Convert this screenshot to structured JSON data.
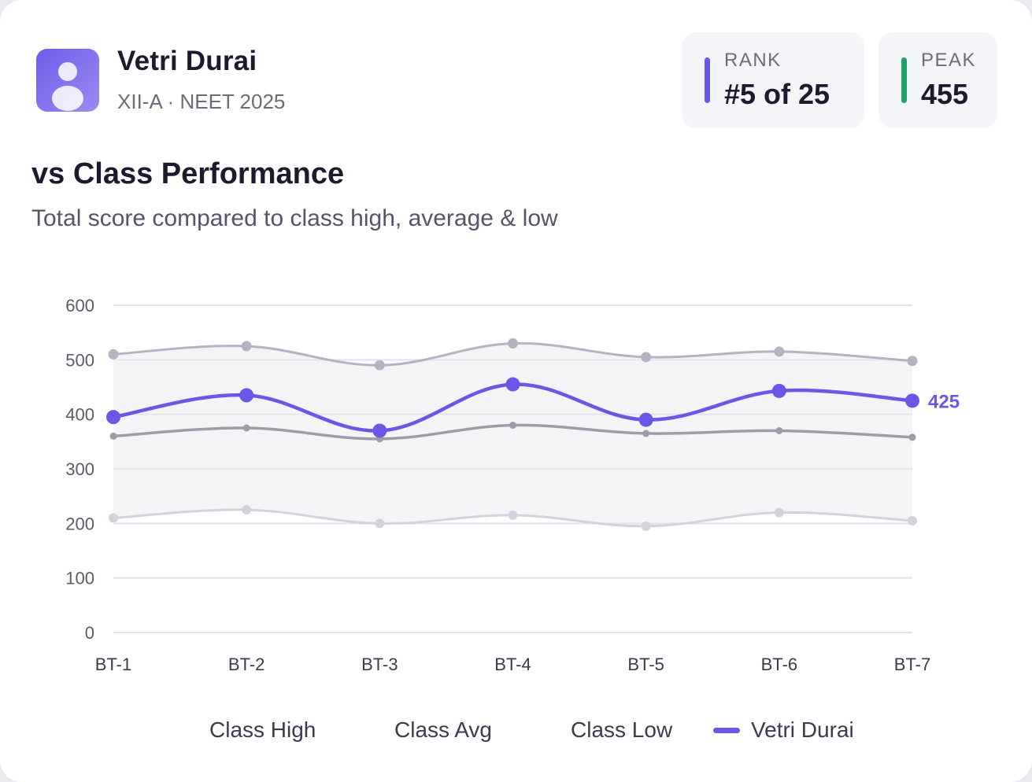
{
  "student": {
    "name": "Vetri Durai",
    "class_info": "XII-A · NEET 2025",
    "avatar_icon": "user-avatar-icon"
  },
  "stats": {
    "rank": {
      "label": "RANK",
      "value": "#5 of 25",
      "color": "#6b57e6"
    },
    "peak": {
      "label": "PEAK",
      "value": "455",
      "color": "#22a06b"
    }
  },
  "section": {
    "title": "vs Class Performance",
    "subtitle": "Total score compared to class high, average & low"
  },
  "chart_data": {
    "type": "line",
    "categories": [
      "BT-1",
      "BT-2",
      "BT-3",
      "BT-4",
      "BT-5",
      "BT-6",
      "BT-7"
    ],
    "ylim": [
      0,
      600
    ],
    "yticks": [
      0,
      100,
      200,
      300,
      400,
      500,
      600
    ],
    "grid": true,
    "series": [
      {
        "name": "Class High",
        "values": [
          510,
          525,
          490,
          530,
          505,
          515,
          498
        ],
        "color": "#b4b3c2"
      },
      {
        "name": "Class Avg",
        "values": [
          360,
          375,
          355,
          380,
          365,
          370,
          358
        ],
        "color": "#9d9ca8"
      },
      {
        "name": "Class Low",
        "values": [
          210,
          225,
          200,
          215,
          195,
          220,
          205
        ],
        "color": "#d3d3de"
      },
      {
        "name": "Vetri Durai",
        "values": [
          395,
          435,
          370,
          455,
          390,
          443,
          425
        ],
        "color": "#6b57e6"
      }
    ],
    "end_label": "425",
    "band_color": "#f2f3f5"
  },
  "legend": {
    "items": [
      {
        "label": "Class High",
        "color": "#b4b3c2",
        "show_swatch": false
      },
      {
        "label": "Class Avg",
        "color": "#9d9ca8",
        "show_swatch": false
      },
      {
        "label": "Class Low",
        "color": "#d3d3de",
        "show_swatch": false
      },
      {
        "label": "Vetri Durai",
        "color": "#6b57e6",
        "show_swatch": true
      }
    ]
  }
}
